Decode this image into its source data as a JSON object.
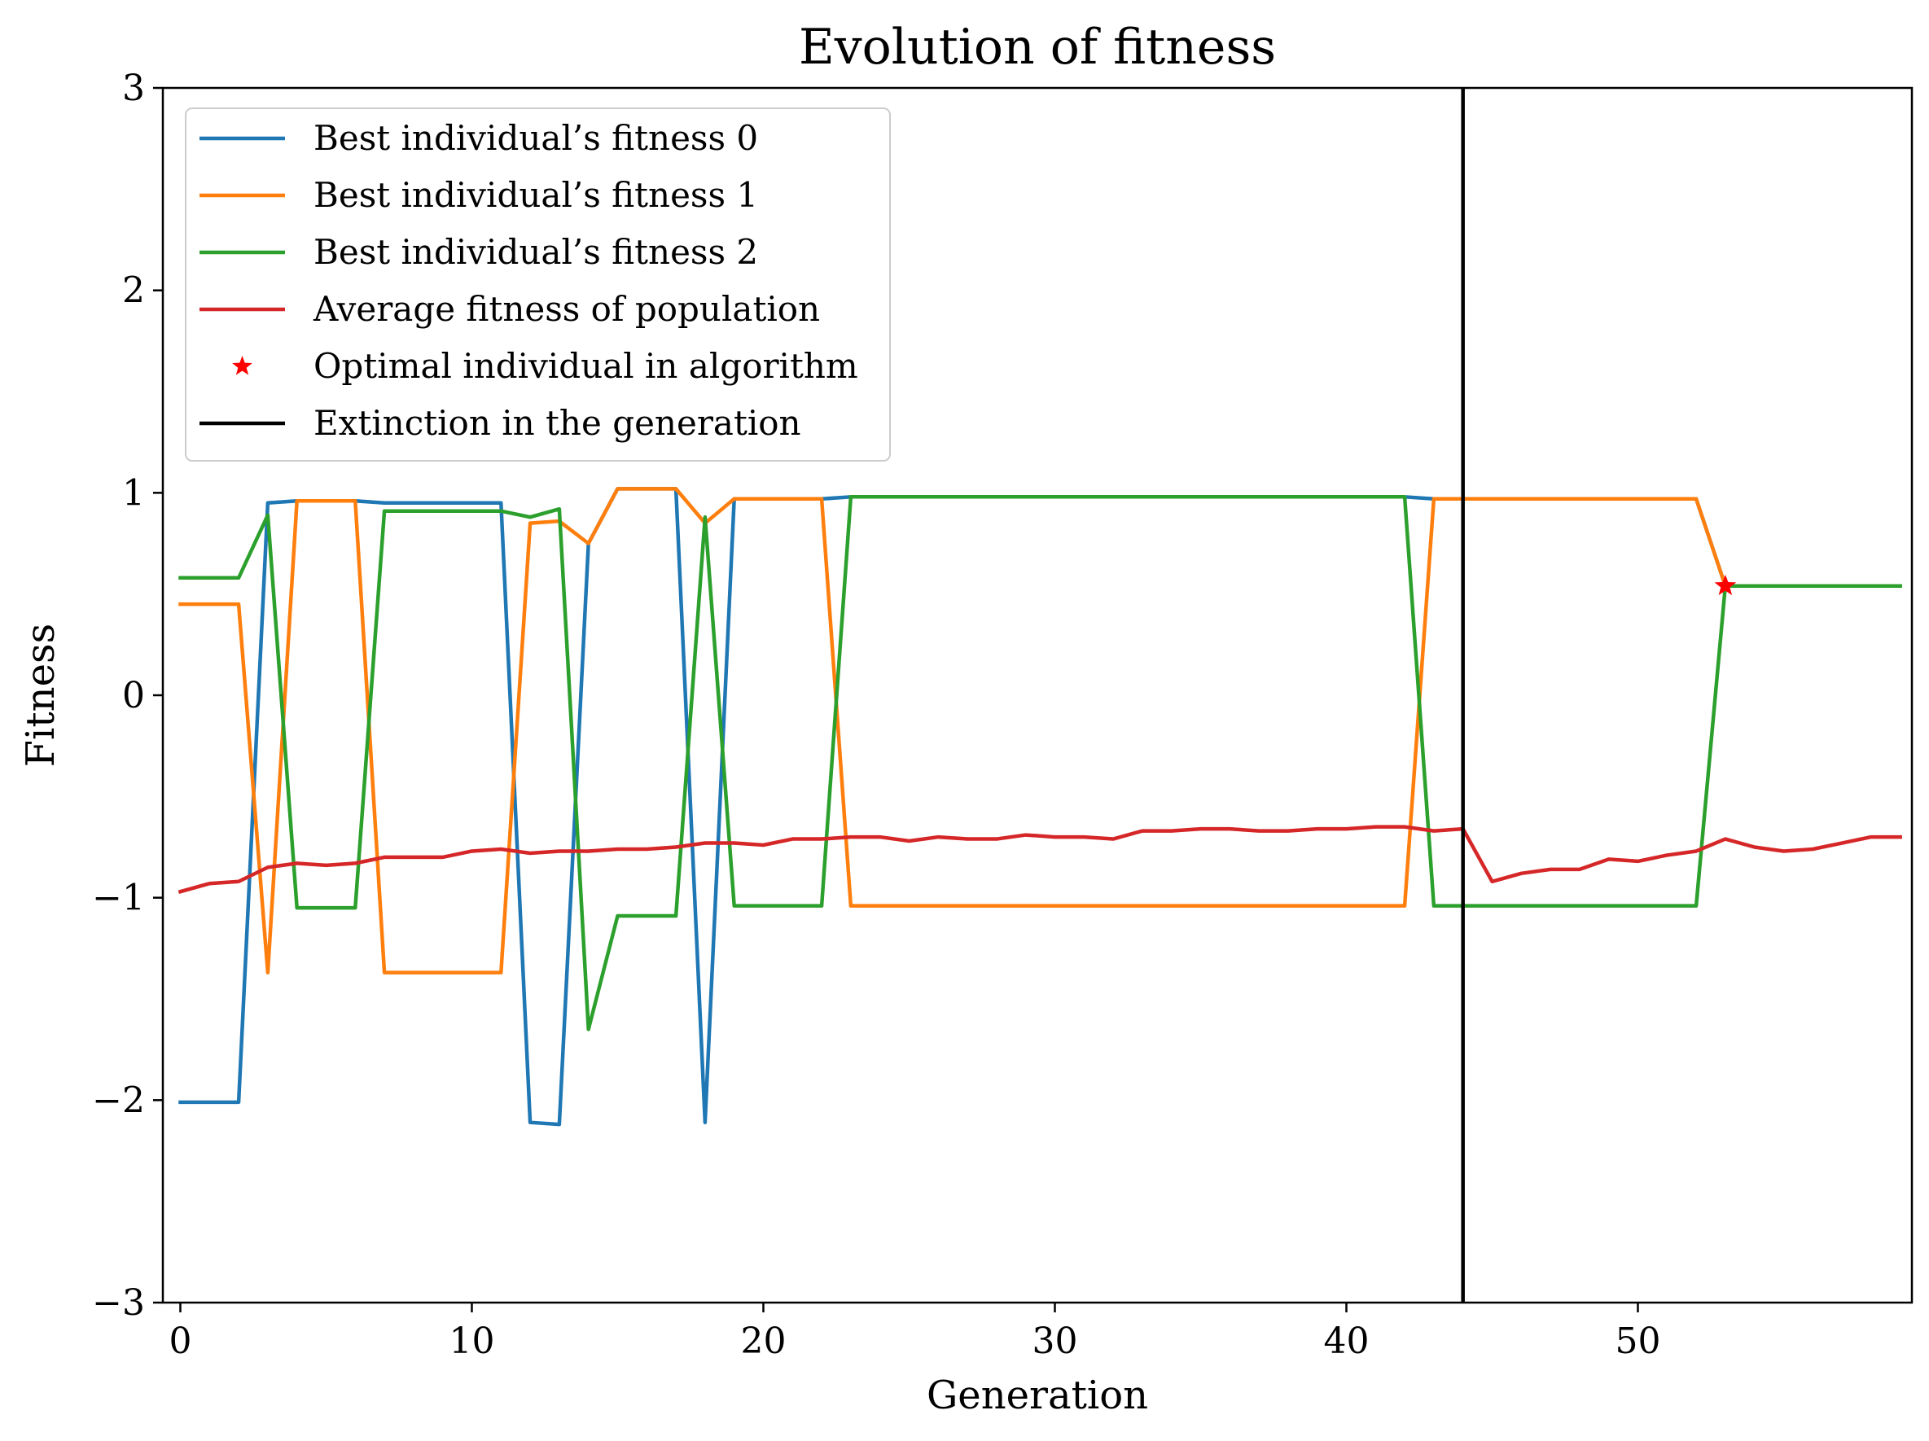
{
  "chart_data": {
    "type": "line",
    "title": "Evolution of fitness",
    "xlabel": "Generation",
    "ylabel": "Fitness",
    "xlim": [
      -0.6,
      59.4
    ],
    "ylim": [
      -3,
      3
    ],
    "xticks": [
      0,
      10,
      20,
      30,
      40,
      50
    ],
    "xtick_labels": [
      "0",
      "10",
      "20",
      "30",
      "40",
      "50"
    ],
    "yticks": [
      -3,
      -2,
      -1,
      0,
      1,
      2,
      3
    ],
    "ytick_labels": [
      "−3",
      "−2",
      "−1",
      "0",
      "1",
      "2",
      "3"
    ],
    "grid": false,
    "legend_position": "top-left",
    "x": [
      0,
      1,
      2,
      3,
      4,
      5,
      6,
      7,
      8,
      9,
      10,
      11,
      12,
      13,
      14,
      15,
      16,
      17,
      18,
      19,
      20,
      21,
      22,
      23,
      24,
      25,
      26,
      27,
      28,
      29,
      30,
      31,
      32,
      33,
      34,
      35,
      36,
      37,
      38,
      39,
      40,
      41,
      42,
      43,
      44,
      45,
      46,
      47,
      48,
      49,
      50,
      51,
      52,
      53,
      54,
      55,
      56,
      57,
      58,
      59
    ],
    "series": [
      {
        "name": "Best individual’s fitness 0",
        "color": "#1f77b4",
        "values": [
          -2.01,
          -2.01,
          -2.01,
          0.95,
          0.96,
          0.96,
          0.96,
          0.95,
          0.95,
          0.95,
          0.95,
          0.95,
          -2.11,
          -2.12,
          0.75,
          1.02,
          1.02,
          1.02,
          -2.11,
          0.97,
          0.97,
          0.97,
          0.97,
          0.98,
          0.98,
          0.98,
          0.98,
          0.98,
          0.98,
          0.98,
          0.98,
          0.98,
          0.98,
          0.98,
          0.98,
          0.98,
          0.98,
          0.98,
          0.98,
          0.98,
          0.98,
          0.98,
          0.98,
          0.97,
          0.97,
          0.97,
          0.97,
          0.97,
          0.97,
          0.97,
          0.97,
          0.97,
          0.97,
          0.54,
          0.54,
          0.54,
          0.54,
          0.54,
          0.54,
          0.54
        ]
      },
      {
        "name": "Best individual’s fitness 1",
        "color": "#ff7f0e",
        "values": [
          0.45,
          0.45,
          0.45,
          -1.37,
          0.96,
          0.96,
          0.96,
          -1.37,
          -1.37,
          -1.37,
          -1.37,
          -1.37,
          0.85,
          0.86,
          0.75,
          1.02,
          1.02,
          1.02,
          0.85,
          0.97,
          0.97,
          0.97,
          0.97,
          -1.04,
          -1.04,
          -1.04,
          -1.04,
          -1.04,
          -1.04,
          -1.04,
          -1.04,
          -1.04,
          -1.04,
          -1.04,
          -1.04,
          -1.04,
          -1.04,
          -1.04,
          -1.04,
          -1.04,
          -1.04,
          -1.04,
          -1.04,
          0.97,
          0.97,
          0.97,
          0.97,
          0.97,
          0.97,
          0.97,
          0.97,
          0.97,
          0.97,
          0.54,
          0.54,
          0.54,
          0.54,
          0.54,
          0.54,
          0.54
        ]
      },
      {
        "name": "Best individual’s fitness 2",
        "color": "#2ca02c",
        "values": [
          0.58,
          0.58,
          0.58,
          0.89,
          -1.05,
          -1.05,
          -1.05,
          0.91,
          0.91,
          0.91,
          0.91,
          0.91,
          0.88,
          0.92,
          -1.65,
          -1.09,
          -1.09,
          -1.09,
          0.88,
          -1.04,
          -1.04,
          -1.04,
          -1.04,
          0.98,
          0.98,
          0.98,
          0.98,
          0.98,
          0.98,
          0.98,
          0.98,
          0.98,
          0.98,
          0.98,
          0.98,
          0.98,
          0.98,
          0.98,
          0.98,
          0.98,
          0.98,
          0.98,
          0.98,
          -1.04,
          -1.04,
          -1.04,
          -1.04,
          -1.04,
          -1.04,
          -1.04,
          -1.04,
          -1.04,
          -1.04,
          0.54,
          0.54,
          0.54,
          0.54,
          0.54,
          0.54,
          0.54
        ]
      },
      {
        "name": "Average fitness of population",
        "color": "#d62728",
        "values": [
          -0.97,
          -0.93,
          -0.92,
          -0.85,
          -0.83,
          -0.84,
          -0.83,
          -0.8,
          -0.8,
          -0.8,
          -0.77,
          -0.76,
          -0.78,
          -0.77,
          -0.77,
          -0.76,
          -0.76,
          -0.75,
          -0.73,
          -0.73,
          -0.74,
          -0.71,
          -0.71,
          -0.7,
          -0.7,
          -0.72,
          -0.7,
          -0.71,
          -0.71,
          -0.69,
          -0.7,
          -0.7,
          -0.71,
          -0.67,
          -0.67,
          -0.66,
          -0.66,
          -0.67,
          -0.67,
          -0.66,
          -0.66,
          -0.65,
          -0.65,
          -0.67,
          -0.66,
          -0.92,
          -0.88,
          -0.86,
          -0.86,
          -0.81,
          -0.82,
          -0.79,
          -0.77,
          -0.71,
          -0.75,
          -0.77,
          -0.76,
          -0.73,
          -0.7,
          -0.7
        ]
      }
    ],
    "optimal_point": {
      "name": "Optimal individual in algorithm",
      "x": 53,
      "y": 0.54,
      "color": "#ff0000",
      "marker": "star"
    },
    "extinction": {
      "name": "Extinction in the generation",
      "x": 44,
      "color": "#000000"
    }
  }
}
